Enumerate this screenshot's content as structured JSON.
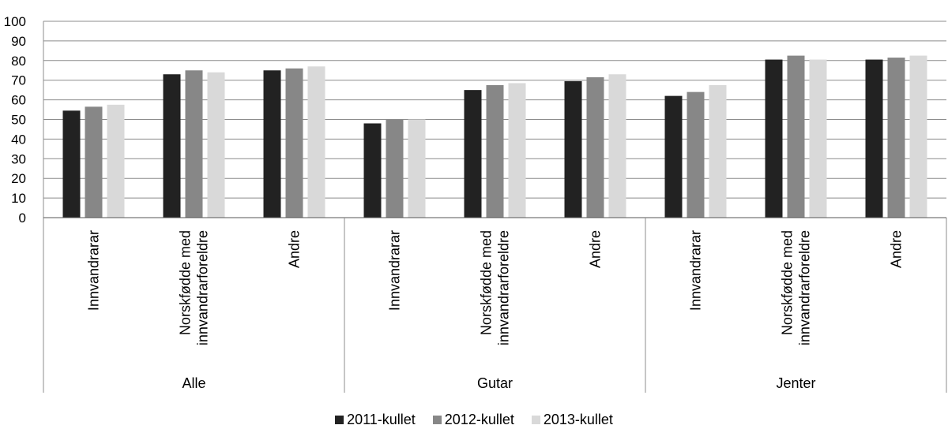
{
  "chart_data": {
    "type": "bar",
    "ylim": [
      0,
      100
    ],
    "yticks": [
      0,
      10,
      20,
      30,
      40,
      50,
      60,
      70,
      80,
      90,
      100
    ],
    "grid": true,
    "legend_position": "bottom",
    "groups": [
      {
        "label": "Alle",
        "categories": [
          "Innvandrarar",
          "Norskfødde med innvandrarforeldre",
          "Andre"
        ]
      },
      {
        "label": "Gutar",
        "categories": [
          "Innvandrarar",
          "Norskfødde med innvandrarforeldre",
          "Andre"
        ]
      },
      {
        "label": "Jenter",
        "categories": [
          "Innvandrarar",
          "Norskfødde med innvandrarforeldre",
          "Andre"
        ]
      }
    ],
    "series": [
      {
        "name": "2011-kullet",
        "color": "#222222",
        "values": [
          54.5,
          73,
          75,
          48,
          65,
          69.5,
          62,
          80.5,
          80.5
        ]
      },
      {
        "name": "2012-kullet",
        "color": "#878787",
        "values": [
          56.5,
          75,
          76,
          50,
          67.5,
          71.5,
          64,
          82.5,
          81.5
        ]
      },
      {
        "name": "2013-kullet",
        "color": "#d9d9d9",
        "values": [
          57.5,
          74,
          77,
          50,
          68.5,
          73,
          67.5,
          80.5,
          82.5
        ]
      }
    ]
  }
}
